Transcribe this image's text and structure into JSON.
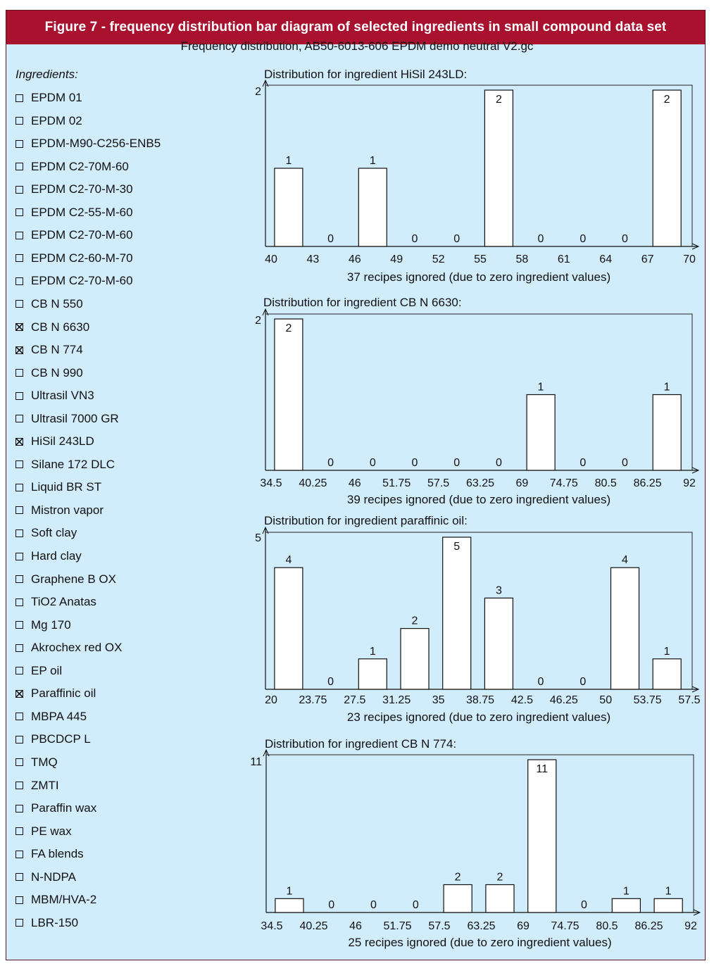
{
  "header": {
    "title": "Figure 7 - frequency distribution bar diagram of selected ingredients in small compound data set"
  },
  "main_title": "Frequency distribution, AB50-6013-606 EPDM demo neutral V2.gc",
  "ingredients": {
    "heading": "Ingredients:",
    "items": [
      {
        "label": "EPDM 01",
        "checked": false
      },
      {
        "label": "EPDM 02",
        "checked": false
      },
      {
        "label": "EPDM-M90-C256-ENB5",
        "checked": false
      },
      {
        "label": "EPDM C2-70M-60",
        "checked": false
      },
      {
        "label": "EPDM C2-70-M-30",
        "checked": false
      },
      {
        "label": "EPDM C2-55-M-60",
        "checked": false
      },
      {
        "label": "EPDM C2-70-M-60",
        "checked": false
      },
      {
        "label": "EPDM C2-60-M-70",
        "checked": false
      },
      {
        "label": "EPDM C2-70-M-60",
        "checked": false
      },
      {
        "label": "CB N 550",
        "checked": false
      },
      {
        "label": "CB N 6630",
        "checked": true
      },
      {
        "label": "CB N 774",
        "checked": true
      },
      {
        "label": "CB N 990",
        "checked": false
      },
      {
        "label": "Ultrasil VN3",
        "checked": false
      },
      {
        "label": "Ultrasil 7000 GR",
        "checked": false
      },
      {
        "label": "HiSil 243LD",
        "checked": true
      },
      {
        "label": "Silane 172 DLC",
        "checked": false
      },
      {
        "label": "Liquid BR ST",
        "checked": false
      },
      {
        "label": "Mistron vapor",
        "checked": false
      },
      {
        "label": "Soft clay",
        "checked": false
      },
      {
        "label": "Hard clay",
        "checked": false
      },
      {
        "label": "Graphene B OX",
        "checked": false
      },
      {
        "label": "TiO2 Anatas",
        "checked": false
      },
      {
        "label": "Mg 170",
        "checked": false
      },
      {
        "label": "Akrochex red OX",
        "checked": false
      },
      {
        "label": "EP oil",
        "checked": false
      },
      {
        "label": "Paraffinic oil",
        "checked": true
      },
      {
        "label": "MBPA 445",
        "checked": false
      },
      {
        "label": "PBCDCP L",
        "checked": false
      },
      {
        "label": "TMQ",
        "checked": false
      },
      {
        "label": "ZMTI",
        "checked": false
      },
      {
        "label": "Paraffin wax",
        "checked": false
      },
      {
        "label": "PE wax",
        "checked": false
      },
      {
        "label": "FA blends",
        "checked": false
      },
      {
        "label": "N-NDPA",
        "checked": false
      },
      {
        "label": "MBM/HVA-2",
        "checked": false
      },
      {
        "label": "LBR-150",
        "checked": false
      }
    ]
  },
  "chart_data": [
    {
      "type": "bar",
      "title": "Distribution for ingredient HiSil 243LD:",
      "ymax_label": "2",
      "ylim": [
        0,
        2
      ],
      "values": [
        1,
        0,
        1,
        0,
        0,
        2,
        0,
        0,
        0,
        2
      ],
      "tick_labels": [
        "40",
        "43",
        "46",
        "49",
        "52",
        "55",
        "58",
        "61",
        "64",
        "67",
        "70"
      ],
      "note": "37 recipes ignored (due to zero ingredient values)"
    },
    {
      "type": "bar",
      "title": "Distribution for ingredient CB N 6630:",
      "ymax_label": "2",
      "ylim": [
        0,
        2
      ],
      "values": [
        2,
        0,
        0,
        0,
        0,
        0,
        1,
        0,
        0,
        1
      ],
      "tick_labels": [
        "34.5",
        "40.25",
        "46",
        "51.75",
        "57.5",
        "63.25",
        "69",
        "74.75",
        "80.5",
        "86.25",
        "92"
      ],
      "note": "39 recipes ignored (due to zero ingredient values)"
    },
    {
      "type": "bar",
      "title": "Distribution for ingredient paraffinic oil:",
      "ymax_label": "5",
      "ylim": [
        0,
        5
      ],
      "values": [
        4,
        0,
        1,
        2,
        5,
        3,
        0,
        0,
        4,
        1
      ],
      "tick_labels": [
        "20",
        "23.75",
        "27.5",
        "31.25",
        "35",
        "38.75",
        "42.5",
        "46.25",
        "50",
        "53.75",
        "57.5"
      ],
      "note": "23 recipes ignored (due to zero ingredient values)"
    },
    {
      "type": "bar",
      "title": "Distribution for ingredient CB N 774:",
      "ymax_label": "11",
      "ylim": [
        0,
        11
      ],
      "values": [
        1,
        0,
        0,
        0,
        2,
        2,
        11,
        0,
        1,
        1
      ],
      "tick_labels": [
        "34.5",
        "40.25",
        "46",
        "51.75",
        "57.5",
        "63.25",
        "69",
        "74.75",
        "80.5",
        "86.25",
        "92"
      ],
      "note": "25 recipes ignored (due to zero ingredient values)"
    }
  ]
}
